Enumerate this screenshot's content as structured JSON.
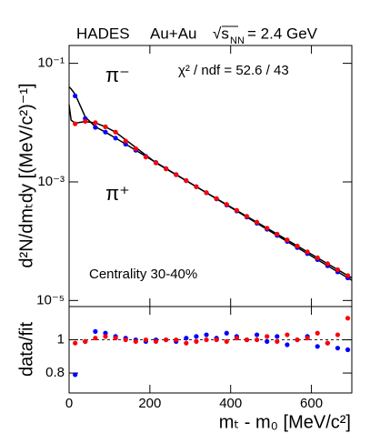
{
  "chart_data": [
    {
      "type": "scatter",
      "header": {
        "experiment": "HADES",
        "system": "Au+Au",
        "energy_symbol": "√s",
        "energy_subscript": "NN",
        "energy": "= 2.4 GeV"
      },
      "ylabel": "d²N/dmₜdy [(MeV/c²)⁻¹]",
      "annotations": [
        "χ² / ndf = 52.6 / 43",
        "Centrality 30-40%"
      ],
      "log_y": true,
      "xlim": [
        0,
        700
      ],
      "ylim": [
        7.9e-06,
        0.2
      ],
      "yticks": [
        {
          "value": 0.1,
          "label": "10⁻¹"
        },
        {
          "value": 0.001,
          "label": "10⁻³"
        },
        {
          "value": 1e-05,
          "label": "10⁻⁵"
        }
      ],
      "x": [
        15,
        40,
        65,
        90,
        115,
        140,
        165,
        190,
        215,
        240,
        265,
        290,
        315,
        340,
        365,
        390,
        415,
        440,
        465,
        490,
        515,
        540,
        565,
        590,
        615,
        640,
        665,
        690
      ],
      "fit_x": [
        0,
        5,
        15,
        40,
        65,
        90,
        115,
        215,
        315,
        415,
        515,
        615,
        700
      ],
      "fit_color": "#000000",
      "series": [
        {
          "name": "π⁻",
          "color": "#0000ff",
          "values": [
            0.0282,
            0.0117,
            0.00832,
            0.00692,
            0.00548,
            0.00433,
            0.00342,
            0.0027,
            0.00213,
            0.00168,
            0.00133,
            0.00105,
            0.000829,
            0.000655,
            0.000517,
            0.000408,
            0.000323,
            0.000255,
            0.000201,
            0.000159,
            0.000125,
            9.91e-05,
            7.82e-05,
            6.18e-05,
            4.88e-05,
            3.85e-05,
            3.04e-05,
            2.4e-05
          ],
          "fit": [
            0.04,
            0.037,
            0.03,
            0.0125,
            0.0085,
            0.0069,
            0.0055,
            0.00213,
            0.000829,
            0.000323,
            0.000125,
            4.88e-05,
            2.19e-05
          ]
        },
        {
          "name": "π⁺",
          "color": "#ff0000",
          "values": [
            0.00955,
            0.0105,
            0.01,
            0.00851,
            0.00692,
            0.0049,
            0.00363,
            0.00263,
            0.00209,
            0.00166,
            0.00132,
            0.00105,
            0.000832,
            0.000661,
            0.000525,
            0.000417,
            0.000331,
            0.000263,
            0.000209,
            0.000166,
            0.000132,
            0.000105,
            8.32e-05,
            6.61e-05,
            5.25e-05,
            4.17e-05,
            3.31e-05,
            2.63e-05
          ],
          "fit": [
            0.02,
            0.011,
            0.0098,
            0.0104,
            0.0099,
            0.0085,
            0.0069,
            0.0021,
            0.00083,
            0.00033,
            0.000132,
            5.25e-05,
            2.4e-05
          ]
        }
      ]
    },
    {
      "type": "scatter",
      "xlabel": "mₜ - m₀ [MeV/c²]",
      "ylabel": "data/fit",
      "xlim": [
        0,
        700
      ],
      "xticks": [
        0,
        200,
        400,
        600
      ],
      "ylim": [
        0.68,
        1.2
      ],
      "yticks": [
        0.8,
        1
      ],
      "reference_line": 1,
      "x": [
        15,
        40,
        65,
        90,
        115,
        140,
        165,
        190,
        215,
        240,
        265,
        290,
        315,
        340,
        365,
        390,
        415,
        440,
        465,
        490,
        515,
        540,
        565,
        590,
        615,
        640,
        665,
        690
      ],
      "series": [
        {
          "color": "#0000ff",
          "values": [
            0.79,
            0.99,
            1.05,
            1.04,
            1.02,
            1.01,
            1.0,
            0.99,
            1.0,
            1.0,
            0.99,
            1.01,
            1.02,
            1.03,
            1.01,
            1.04,
            1.02,
            1.0,
            1.03,
            0.99,
            1.02,
            0.97,
            1.0,
            1.02,
            0.96,
            0.98,
            0.95,
            0.94
          ]
        },
        {
          "color": "#ff0000",
          "values": [
            0.98,
            0.99,
            1.01,
            1.02,
            1.01,
            1.0,
            0.99,
            1.0,
            0.99,
            1.0,
            1.0,
            0.98,
            0.99,
            1.0,
            1.0,
            0.99,
            1.01,
            1.0,
            1.0,
            1.02,
            0.99,
            1.03,
            1.0,
            1.01,
            1.04,
            0.98,
            1.03,
            1.13
          ]
        }
      ]
    }
  ]
}
